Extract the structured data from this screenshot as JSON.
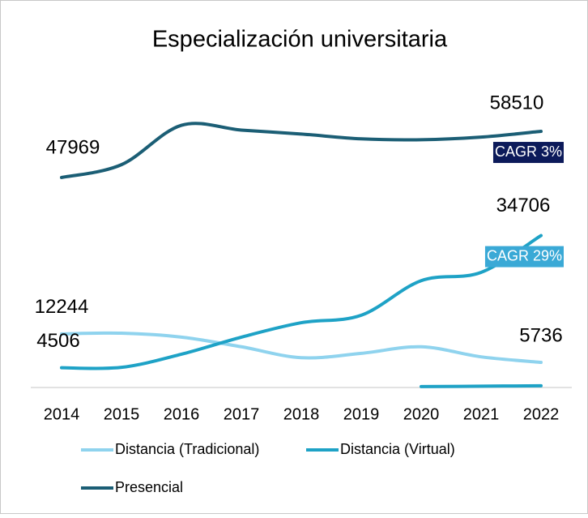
{
  "chart_data": {
    "type": "line",
    "title": "Especialización universitaria",
    "categories": [
      "2014",
      "2015",
      "2016",
      "2017",
      "2018",
      "2019",
      "2020",
      "2021",
      "2022"
    ],
    "series": [
      {
        "name": "Distancia (Tradicional)",
        "color": "#8fd3ee",
        "values": [
          12244,
          12400,
          11500,
          9300,
          6800,
          7800,
          9300,
          7000,
          5736
        ]
      },
      {
        "name": "Distancia (Virtual)",
        "color": "#1ea2c6",
        "values": [
          4506,
          4600,
          7600,
          11500,
          14800,
          16500,
          24400,
          26300,
          34706
        ]
      },
      {
        "name": "Presencial",
        "color": "#1b5e75",
        "values": [
          47969,
          50900,
          59900,
          58800,
          57900,
          56800,
          56600,
          57200,
          58510
        ]
      },
      {
        "color": "#1ea2c6",
        "values": [
          null,
          null,
          null,
          null,
          null,
          null,
          200,
          300,
          400
        ]
      }
    ],
    "ylim": [
      0,
      70000
    ],
    "annotations": [
      {
        "text": "CAGR 3%",
        "color": "#0c1a5a",
        "series": 2
      },
      {
        "text": "CAGR 29%",
        "color": "#3aa9d6",
        "series": 1
      }
    ]
  }
}
